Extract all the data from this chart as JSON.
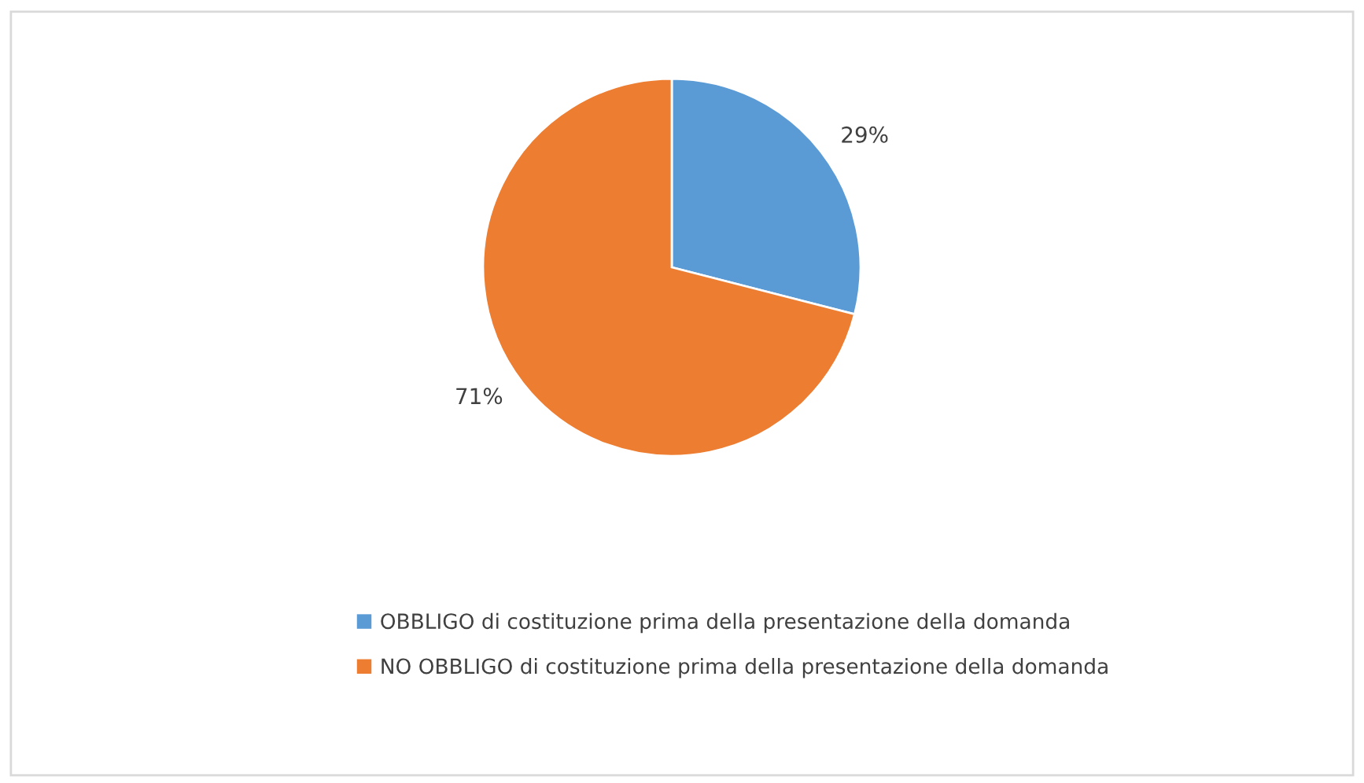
{
  "chart_data": {
    "type": "pie",
    "categories": [
      "OBBLIGO di costituzione prima della presentazione della domanda",
      "NO OBBLIGO di costituzione prima della presentazione della domanda"
    ],
    "values": [
      29,
      71
    ],
    "colors": [
      "#5b9bd5",
      "#ed7d31"
    ],
    "value_labels": [
      "29%",
      "71%"
    ],
    "legend": "bottom"
  }
}
